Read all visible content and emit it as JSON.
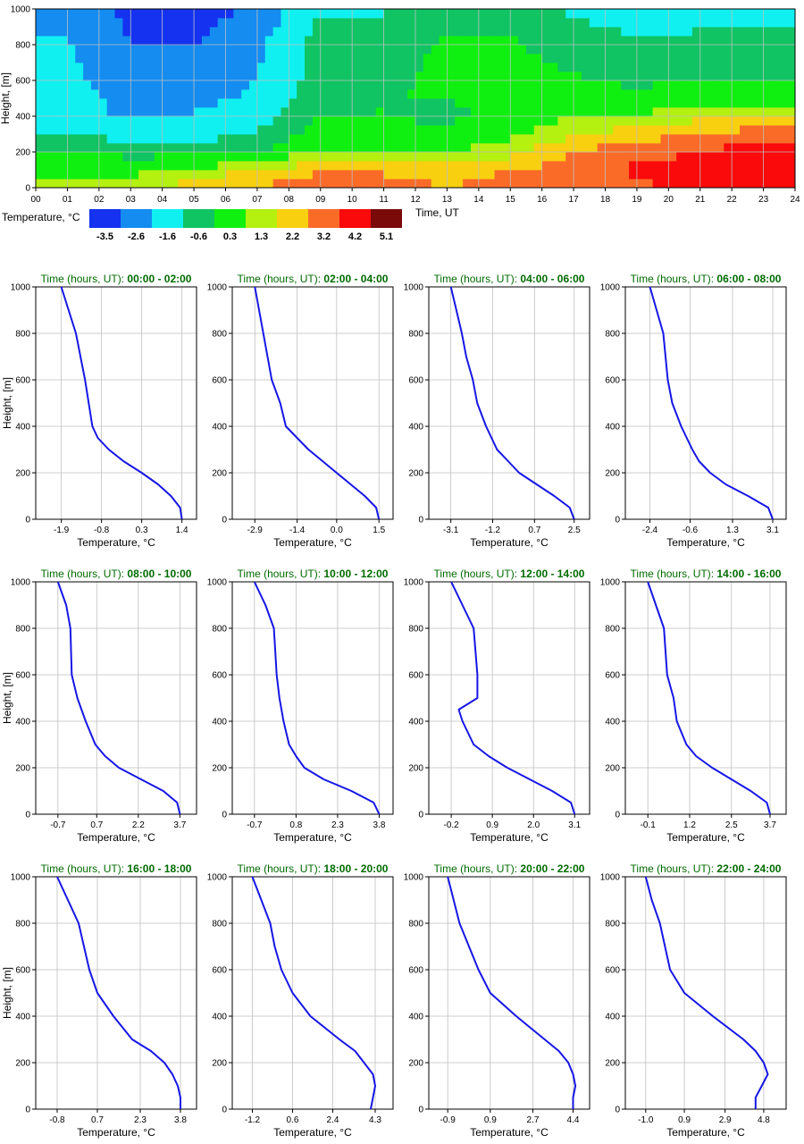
{
  "colors": {
    "profile_line": "#1616e6",
    "title_green": "#006b00",
    "grid": "#bfbfbf",
    "bins": [
      "#1432f0",
      "#148cf0",
      "#10f0f0",
      "#10c464",
      "#10f010",
      "#b4f010",
      "#f8d010",
      "#fa6b28",
      "#fa0a0a",
      "#7a0a0a"
    ]
  },
  "legend": {
    "title": "Temperature, °C",
    "labels": [
      "-3.5",
      "-2.6",
      "-1.6",
      "-0.6",
      "0.3",
      "1.3",
      "2.2",
      "3.2",
      "4.2",
      "5.1"
    ]
  },
  "chart_data": [
    {
      "type": "heatmap",
      "xlabel": "Time, UT",
      "ylabel": "Height, [m]",
      "x_ticks": [
        "00",
        "01",
        "02",
        "03",
        "04",
        "05",
        "06",
        "07",
        "08",
        "09",
        "10",
        "11",
        "12",
        "13",
        "14",
        "15",
        "16",
        "17",
        "18",
        "19",
        "20",
        "21",
        "22",
        "23",
        "24"
      ],
      "y_ticks": [
        "0",
        "200",
        "400",
        "600",
        "800",
        "1000"
      ],
      "xlim": [
        0,
        24
      ],
      "ylim": [
        0,
        1000
      ],
      "heights": [
        0,
        50,
        100,
        150,
        200,
        250,
        300,
        350,
        400,
        450,
        500,
        550,
        600,
        650,
        700,
        750,
        800,
        850,
        900,
        950,
        1000
      ],
      "profile_times": [
        1,
        3,
        5,
        7,
        9,
        11,
        13,
        15,
        17,
        19,
        21,
        23
      ],
      "grid": true
    },
    {
      "type": "line",
      "title": "Time (hours, UT): 00:00 - 02:00",
      "xlabel": "Temperature, °C",
      "ylabel": "Height, [m]",
      "x_ticks": [
        "-1.9",
        "-0.8",
        "0.3",
        "1.4"
      ],
      "y_ticks": [
        "0",
        "200",
        "400",
        "600",
        "800",
        "1000"
      ],
      "xlim": [
        -2.6,
        1.8
      ],
      "ylim": [
        0,
        1000
      ],
      "x": [
        1.4,
        1.35,
        1.1,
        0.75,
        0.3,
        -0.2,
        -0.6,
        -0.9,
        -1.05,
        -1.15,
        -1.25,
        -1.5,
        -1.9
      ],
      "y": [
        0,
        50,
        100,
        150,
        200,
        250,
        300,
        350,
        400,
        500,
        600,
        800,
        1000
      ]
    },
    {
      "type": "line",
      "title": "Time (hours, UT): 02:00 - 04:00",
      "xlabel": "Temperature, °C",
      "ylabel": "Height, [m]",
      "x_ticks": [
        "-2.9",
        "-1.4",
        "0.0",
        "1.5"
      ],
      "y_ticks": [
        "0",
        "200",
        "400",
        "600",
        "800",
        "1000"
      ],
      "xlim": [
        -3.7,
        2.0
      ],
      "ylim": [
        0,
        1000
      ],
      "x": [
        1.5,
        1.4,
        1.0,
        0.5,
        0.0,
        -0.5,
        -1.0,
        -1.4,
        -1.8,
        -2.0,
        -2.3,
        -2.9
      ],
      "y": [
        0,
        50,
        100,
        150,
        200,
        250,
        300,
        350,
        400,
        500,
        600,
        1000
      ]
    },
    {
      "type": "line",
      "title": "Time (hours, UT): 04:00 - 06:00",
      "xlabel": "Temperature, °C",
      "ylabel": "Height, [m]",
      "x_ticks": [
        "-3.1",
        "-1.2",
        "0.7",
        "2.5"
      ],
      "y_ticks": [
        "0",
        "200",
        "400",
        "600",
        "800",
        "1000"
      ],
      "xlim": [
        -4.1,
        3.2
      ],
      "ylim": [
        0,
        1000
      ],
      "x": [
        2.5,
        2.3,
        1.6,
        0.8,
        0.0,
        -0.5,
        -1.0,
        -1.5,
        -1.9,
        -2.1,
        -2.4,
        -2.6,
        -3.1
      ],
      "y": [
        0,
        50,
        100,
        150,
        200,
        250,
        300,
        400,
        500,
        600,
        700,
        800,
        1000
      ]
    },
    {
      "type": "line",
      "title": "Time (hours, UT): 06:00 - 08:00",
      "xlabel": "Temperature, °C",
      "ylabel": "Height, [m]",
      "x_ticks": [
        "-2.4",
        "-0.6",
        "1.3",
        "3.1"
      ],
      "y_ticks": [
        "0",
        "200",
        "400",
        "600",
        "800",
        "1000"
      ],
      "xlim": [
        -3.5,
        3.7
      ],
      "ylim": [
        0,
        1000
      ],
      "x": [
        3.1,
        2.9,
        2.0,
        1.0,
        0.3,
        -0.2,
        -0.5,
        -1.0,
        -1.4,
        -1.6,
        -1.8,
        -2.4
      ],
      "y": [
        0,
        50,
        100,
        150,
        200,
        250,
        300,
        400,
        500,
        600,
        800,
        1000
      ]
    },
    {
      "type": "line",
      "title": "Time (hours, UT): 08:00 - 10:00",
      "xlabel": "Temperature, °C",
      "ylabel": "Height, [m]",
      "x_ticks": [
        "-0.7",
        "0.7",
        "2.2",
        "3.7"
      ],
      "y_ticks": [
        "0",
        "200",
        "400",
        "600",
        "800",
        "1000"
      ],
      "xlim": [
        -1.5,
        4.3
      ],
      "ylim": [
        0,
        1000
      ],
      "x": [
        3.7,
        3.6,
        3.1,
        2.3,
        1.5,
        1.0,
        0.65,
        0.3,
        0.0,
        -0.2,
        -0.25,
        -0.4,
        -0.7
      ],
      "y": [
        0,
        50,
        100,
        150,
        200,
        250,
        300,
        400,
        500,
        600,
        800,
        900,
        1000
      ]
    },
    {
      "type": "line",
      "title": "Time (hours, UT): 10:00 - 12:00",
      "xlabel": "Temperature, °C",
      "ylabel": "Height, [m]",
      "x_ticks": [
        "-0.7",
        "0.8",
        "2.3",
        "3.8"
      ],
      "y_ticks": [
        "0",
        "200",
        "400",
        "600",
        "800",
        "1000"
      ],
      "xlim": [
        -1.5,
        4.3
      ],
      "ylim": [
        0,
        1000
      ],
      "x": [
        3.8,
        3.6,
        2.8,
        1.8,
        1.1,
        0.8,
        0.55,
        0.35,
        0.2,
        0.1,
        0.0,
        -0.3,
        -0.7
      ],
      "y": [
        0,
        50,
        100,
        150,
        200,
        250,
        300,
        400,
        500,
        600,
        800,
        900,
        1000
      ]
    },
    {
      "type": "line",
      "title": "Time (hours, UT): 12:00 - 14:00",
      "xlabel": "Temperature, °C",
      "ylabel": "Height, [m]",
      "x_ticks": [
        "-0.2",
        "0.9",
        "2.0",
        "3.1"
      ],
      "y_ticks": [
        "0",
        "200",
        "400",
        "600",
        "800",
        "1000"
      ],
      "xlim": [
        -0.8,
        3.5
      ],
      "ylim": [
        0,
        1000
      ],
      "x": [
        3.1,
        3.0,
        2.5,
        1.9,
        1.3,
        0.8,
        0.4,
        0.1,
        0.0,
        0.5,
        0.5,
        0.4,
        -0.2
      ],
      "y": [
        0,
        50,
        100,
        150,
        200,
        250,
        300,
        400,
        450,
        500,
        600,
        800,
        1000
      ]
    },
    {
      "type": "line",
      "title": "Time (hours, UT): 14:00 - 16:00",
      "xlabel": "Temperature, °C",
      "ylabel": "Height, [m]",
      "x_ticks": [
        "-0.1",
        "1.2",
        "2.5",
        "3.7"
      ],
      "y_ticks": [
        "0",
        "200",
        "400",
        "600",
        "800",
        "1000"
      ],
      "xlim": [
        -0.8,
        4.2
      ],
      "ylim": [
        0,
        1000
      ],
      "x": [
        3.7,
        3.6,
        3.1,
        2.5,
        1.9,
        1.4,
        1.1,
        0.8,
        0.7,
        0.5,
        0.4,
        -0.1
      ],
      "y": [
        0,
        50,
        100,
        150,
        200,
        250,
        300,
        400,
        500,
        600,
        800,
        1000
      ]
    },
    {
      "type": "line",
      "title": "Time (hours, UT): 16:00 - 18:00",
      "xlabel": "Temperature, °C",
      "ylabel": "Height, [m]",
      "x_ticks": [
        "-0.8",
        "0.7",
        "2.3",
        "3.8"
      ],
      "y_ticks": [
        "0",
        "200",
        "400",
        "600",
        "800",
        "1000"
      ],
      "xlim": [
        -1.6,
        4.4
      ],
      "ylim": [
        0,
        1000
      ],
      "x": [
        3.8,
        3.8,
        3.7,
        3.5,
        3.2,
        2.7,
        2.0,
        1.3,
        0.7,
        0.4,
        0.0,
        -0.8
      ],
      "y": [
        0,
        50,
        100,
        150,
        200,
        250,
        300,
        400,
        500,
        600,
        800,
        1000
      ]
    },
    {
      "type": "line",
      "title": "Time (hours, UT): 18:00 - 20:00",
      "xlabel": "Temperature, °C",
      "ylabel": "Height, [m]",
      "x_ticks": [
        "-1.2",
        "0.6",
        "2.4",
        "4.3"
      ],
      "y_ticks": [
        "0",
        "200",
        "400",
        "600",
        "800",
        "1000"
      ],
      "xlim": [
        -2.1,
        5.1
      ],
      "ylim": [
        0,
        1000
      ],
      "x": [
        4.1,
        4.2,
        4.3,
        4.2,
        3.8,
        3.4,
        2.7,
        1.4,
        0.6,
        0.1,
        -0.2,
        -0.4,
        -1.2
      ],
      "y": [
        0,
        50,
        100,
        150,
        200,
        250,
        300,
        400,
        500,
        600,
        700,
        800,
        1000
      ]
    },
    {
      "type": "line",
      "title": "Time (hours, UT): 20:00 - 22:00",
      "xlabel": "Temperature, °C",
      "ylabel": "Height, [m]",
      "x_ticks": [
        "-0.9",
        "0.9",
        "2.7",
        "4.4"
      ],
      "y_ticks": [
        "0",
        "200",
        "400",
        "600",
        "800",
        "1000"
      ],
      "xlim": [
        -1.7,
        5.1
      ],
      "ylim": [
        0,
        1000
      ],
      "x": [
        4.4,
        4.4,
        4.5,
        4.4,
        4.2,
        3.8,
        3.2,
        2.0,
        0.9,
        0.4,
        -0.4,
        -0.9
      ],
      "y": [
        0,
        50,
        100,
        150,
        200,
        250,
        300,
        400,
        500,
        600,
        800,
        1000
      ]
    },
    {
      "type": "line",
      "title": "Time (hours, UT): 22:00 - 24:00",
      "xlabel": "Temperature, °C",
      "ylabel": "Height, [m]",
      "x_ticks": [
        "-1.0",
        "0.9",
        "2.9",
        "4.8"
      ],
      "y_ticks": [
        "0",
        "200",
        "400",
        "600",
        "800",
        "1000"
      ],
      "xlim": [
        -2.0,
        5.9
      ],
      "ylim": [
        0,
        1000
      ],
      "x": [
        4.4,
        4.4,
        4.7,
        5.0,
        4.8,
        4.4,
        3.8,
        2.3,
        0.9,
        0.2,
        -0.3,
        -0.7,
        -1.0
      ],
      "y": [
        0,
        50,
        100,
        150,
        200,
        250,
        300,
        400,
        500,
        600,
        800,
        900,
        1000
      ]
    }
  ]
}
